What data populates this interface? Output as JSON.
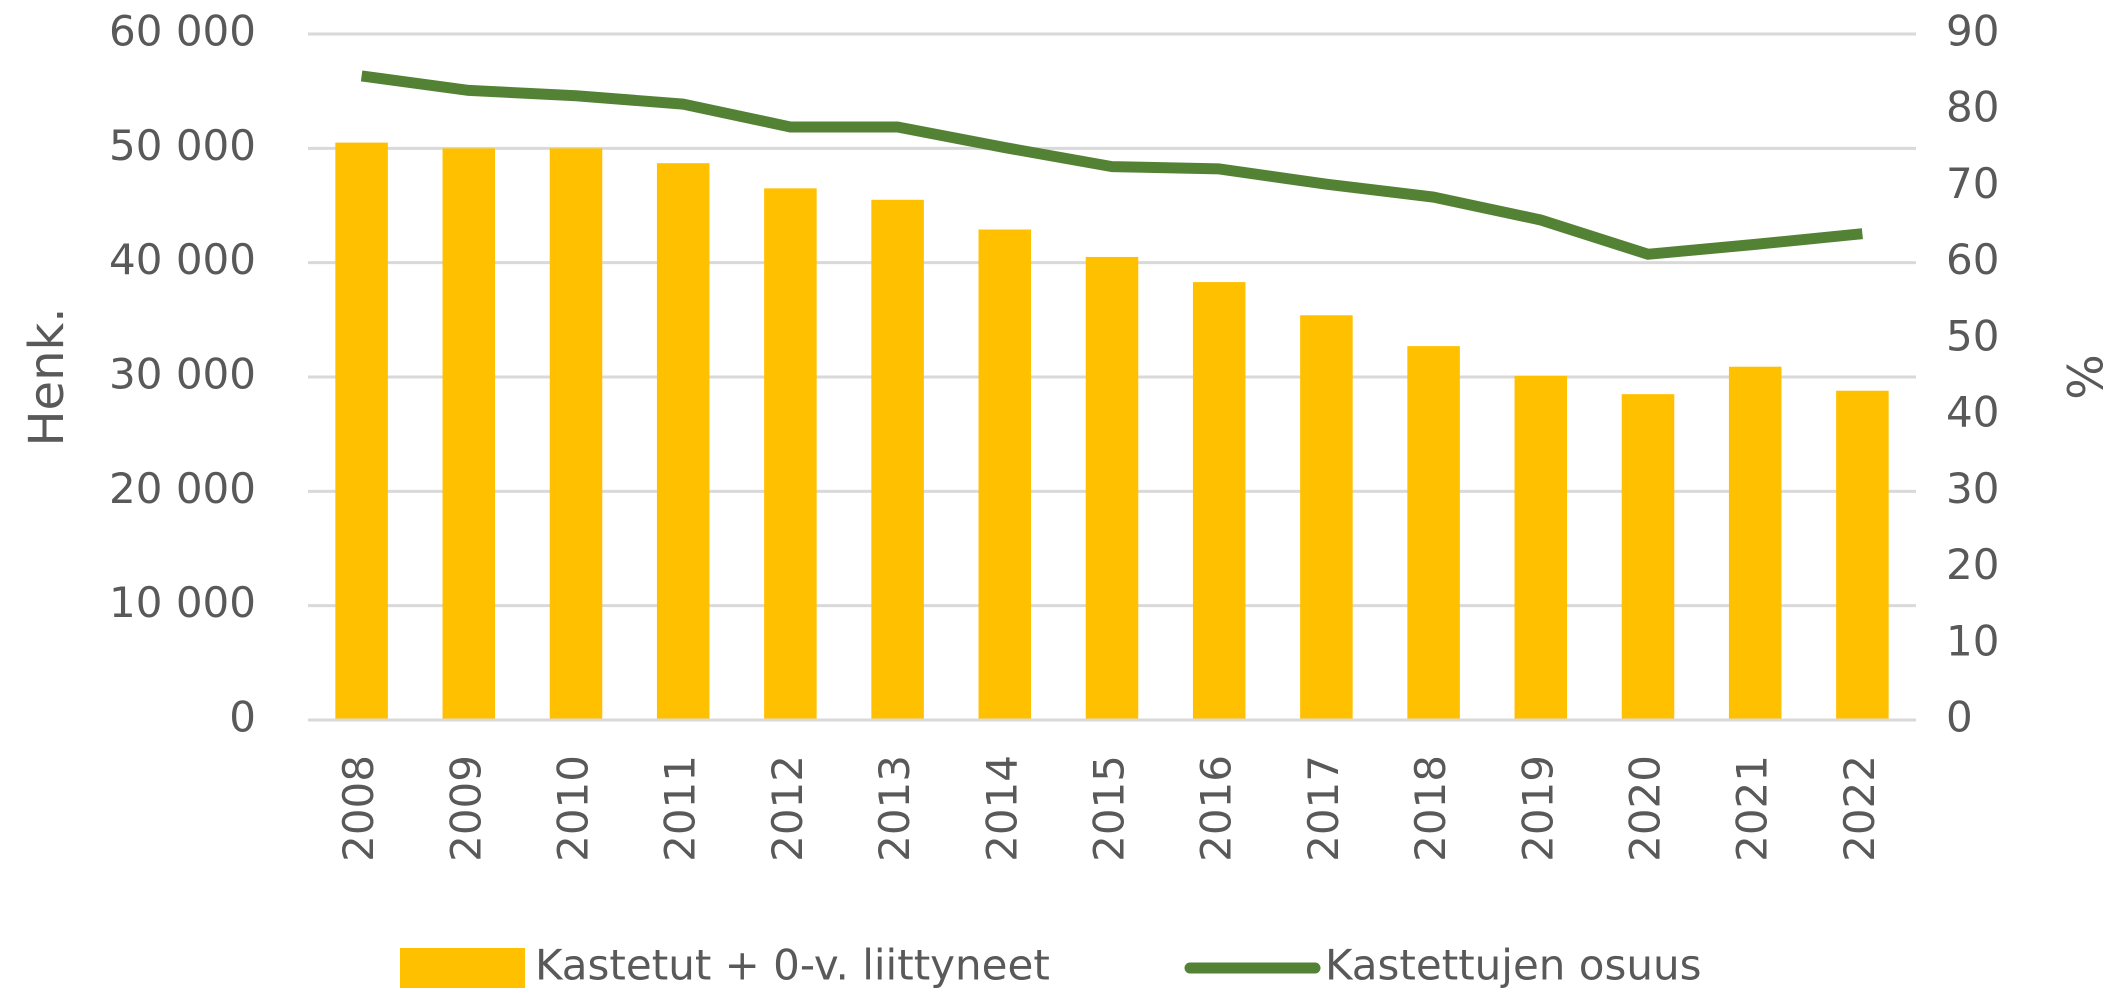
{
  "chart_data": {
    "type": "bar",
    "categories": [
      "2008",
      "2009",
      "2010",
      "2011",
      "2012",
      "2013",
      "2014",
      "2015",
      "2016",
      "2017",
      "2018",
      "2019",
      "2020",
      "2021",
      "2022"
    ],
    "series": [
      {
        "name": "Kastetut + 0-v. liittyneet",
        "type": "bar",
        "color": "#ffc000",
        "values": [
          50500,
          50000,
          50000,
          48700,
          46500,
          45500,
          42900,
          40500,
          38300,
          35400,
          32700,
          30100,
          28500,
          30900,
          28800
        ]
      },
      {
        "name": "Kastettujen osuus",
        "type": "line",
        "axis": "y2",
        "color": "#548235",
        "values": [
          84.5,
          82.6,
          81.9,
          80.8,
          77.8,
          77.8,
          75.1,
          72.6,
          72.3,
          70.3,
          68.6,
          65.6,
          61.1,
          62.4,
          63.8
        ]
      }
    ],
    "y_label": "Henk.",
    "y2_label": "%",
    "ylim": [
      0,
      60000
    ],
    "yticks": [
      0,
      {
        "value": 10000,
        "label": "10 000"
      },
      {
        "value": 20000,
        "label": "20 000"
      },
      {
        "value": 30000,
        "label": "30 000"
      },
      {
        "value": 40000,
        "label": "40 000"
      },
      {
        "value": 50000,
        "label": "50 000"
      },
      {
        "value": 60000,
        "label": "60 000"
      }
    ],
    "y2lim": [
      0,
      90
    ],
    "y2ticks": [
      0,
      10,
      20,
      30,
      40,
      50,
      60,
      70,
      80,
      90
    ],
    "grid": true,
    "legend": "bottom"
  }
}
